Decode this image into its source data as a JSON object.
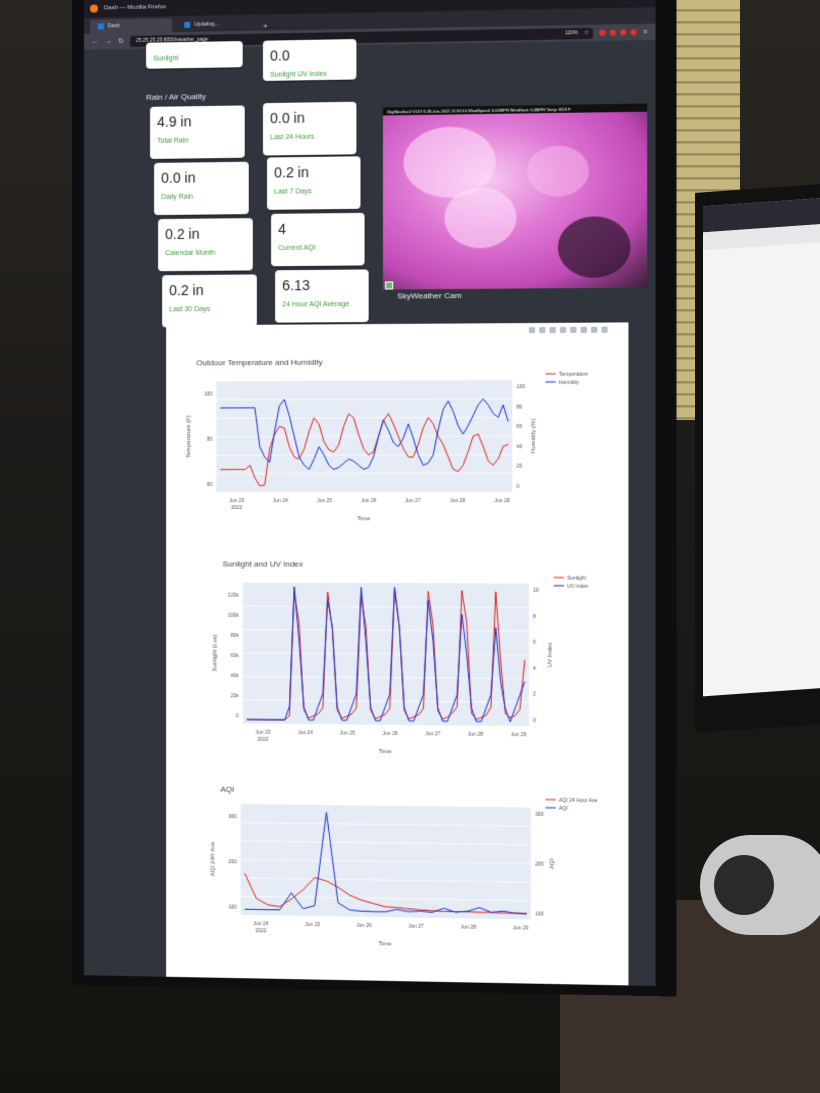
{
  "browser": {
    "window_title": "Dash — Mozilla Firefox",
    "tabs": [
      {
        "label": "Dash"
      },
      {
        "label": "Updating..."
      }
    ],
    "url": "25.25.25.25:8050/weather_page",
    "zoom": "120%"
  },
  "top_cards": [
    {
      "label": "Sunlight"
    },
    {
      "value": "0.0",
      "label": "Sunlight UV Index"
    }
  ],
  "rain_section": {
    "title": "Rain / Air Quality",
    "left": [
      {
        "value": "4.9 in",
        "label": "Total Rain"
      },
      {
        "value": "0.0 in",
        "label": "Daily Rain"
      },
      {
        "value": "0.2 in",
        "label": "Calendar Month"
      },
      {
        "value": "0.2 in",
        "label": "Last 30 Days"
      }
    ],
    "right": [
      {
        "value": "0.0 in",
        "label": "Last 24 Hours"
      },
      {
        "value": "0.2 in",
        "label": "Last 7 Days"
      },
      {
        "value": "4",
        "label": "Current AQI"
      },
      {
        "value": "6.13",
        "label": "24 Hour AQI Average"
      }
    ]
  },
  "camera": {
    "caption": "SkyWeather Cam",
    "stamp": "SkyWeather2 V107 6 28-Jun-2022 21:59:10 WindSpeed: 0.00MPH WindGust: 0.0MPH Temp: 83.8 F"
  },
  "colors": {
    "red": "#e0201a",
    "blue": "#1a2fd0",
    "plot_bg": "#e5ecf6",
    "label_green": "#3f9a3f"
  },
  "chart_data": [
    {
      "type": "line",
      "title": "Outdoor Temperature and Humidity",
      "xlabel": "Time",
      "ylabel": "Temperature (F)",
      "y2label": "Humidity (%)",
      "x_ticks": [
        "Jun 23\n2022",
        "Jun 24",
        "Jun 25",
        "Jun 26",
        "Jun 27",
        "Jun 28",
        "Jun 29"
      ],
      "y_ticks": [
        "60",
        "80",
        "100"
      ],
      "y2_ticks": [
        "0",
        "20",
        "40",
        "60",
        "80",
        "100"
      ],
      "legend_position": "top-right",
      "series": [
        {
          "name": "Temperature",
          "axis": "y2",
          "color": "#e0201a",
          "values": [
            18,
            18,
            18,
            18,
            18,
            18,
            22,
            10,
            2,
            3,
            38,
            52,
            60,
            58,
            40,
            30,
            28,
            38,
            55,
            68,
            62,
            45,
            37,
            35,
            42,
            60,
            72,
            68,
            52,
            38,
            32,
            35,
            50,
            65,
            72,
            62,
            50,
            38,
            30,
            30,
            42,
            58,
            68,
            62,
            50,
            42,
            30,
            18,
            16,
            22,
            35,
            50,
            52,
            40,
            26,
            22,
            28,
            40,
            42
          ]
        },
        {
          "name": "Humidity",
          "axis": "y2",
          "color": "#1a2fd0",
          "values": [
            78,
            78,
            78,
            78,
            78,
            78,
            78,
            78,
            40,
            30,
            25,
            55,
            80,
            86,
            70,
            50,
            30,
            22,
            18,
            28,
            40,
            32,
            22,
            18,
            20,
            24,
            28,
            26,
            22,
            18,
            20,
            30,
            50,
            66,
            56,
            44,
            40,
            48,
            62,
            48,
            32,
            22,
            24,
            32,
            56,
            76,
            84,
            74,
            60,
            52,
            60,
            70,
            80,
            86,
            80,
            72,
            68,
            80,
            64
          ]
        }
      ]
    },
    {
      "type": "line",
      "title": "Sunlight and UV Index",
      "xlabel": "Time",
      "ylabel": "Sunlight (Lux)",
      "y2label": "UV Index",
      "x_ticks": [
        "Jun 23\n2022",
        "Jun 24",
        "Jun 25",
        "Jun 26",
        "Jun 27",
        "Jun 28",
        "Jun 29"
      ],
      "y_ticks": [
        "0",
        "20k",
        "40k",
        "60k",
        "80k",
        "100k",
        "120k"
      ],
      "y2_ticks": [
        "0",
        "2",
        "4",
        "6",
        "8",
        "10"
      ],
      "legend_position": "top-right",
      "series": [
        {
          "name": "Sunlight",
          "color": "#e0201a",
          "values": [
            0,
            0,
            0,
            0,
            0,
            0,
            0,
            0,
            0,
            4,
            125,
            95,
            10,
            2,
            4,
            6,
            12,
            125,
            88,
            10,
            2,
            4,
            6,
            12,
            122,
            92,
            10,
            2,
            4,
            6,
            12,
            128,
            90,
            10,
            2,
            4,
            6,
            12,
            126,
            94,
            10,
            2,
            4,
            8,
            14,
            127,
            96,
            8,
            2,
            4,
            6,
            14,
            126,
            60,
            8,
            4,
            6,
            12,
            60
          ]
        },
        {
          "name": "UV Index",
          "color": "#1a2fd0",
          "values": [
            0,
            0,
            0,
            0,
            0,
            0,
            0,
            0,
            0,
            1,
            10,
            6,
            1,
            0,
            0,
            1,
            2,
            9,
            7,
            1,
            0,
            0,
            1,
            2,
            10,
            6,
            1,
            0,
            0,
            1,
            2,
            10,
            7,
            1,
            0,
            0,
            1,
            2,
            9,
            6,
            1,
            0,
            0,
            1,
            2,
            8,
            5,
            1,
            0,
            0,
            1,
            2,
            7,
            3,
            1,
            0,
            1,
            2,
            3
          ]
        }
      ]
    },
    {
      "type": "line",
      "title": "AQI",
      "xlabel": "Time",
      "ylabel": "AQI 24H Ave",
      "y2label": "AQI",
      "x_ticks": [
        "Jun 24\n2022",
        "Jun 25",
        "Jun 26",
        "Jun 27",
        "Jun 28",
        "Jun 29"
      ],
      "y_ticks": [
        "100",
        "200",
        "300"
      ],
      "y2_ticks": [
        "100",
        "200",
        "300"
      ],
      "legend_position": "top-right",
      "series": [
        {
          "name": "AQI 24 Hour Ave",
          "color": "#e0201a",
          "values": [
            120,
            40,
            20,
            15,
            40,
            70,
            110,
            100,
            80,
            55,
            40,
            30,
            20,
            18,
            15,
            12,
            10,
            8,
            8,
            8,
            7,
            7,
            6,
            6,
            6
          ]
        },
        {
          "name": "AQI",
          "color": "#1a2fd0",
          "values": [
            5,
            5,
            5,
            5,
            60,
            10,
            20,
            320,
            30,
            8,
            5,
            4,
            4,
            12,
            6,
            8,
            5,
            18,
            6,
            10,
            22,
            8,
            12,
            6,
            4
          ]
        }
      ]
    }
  ]
}
